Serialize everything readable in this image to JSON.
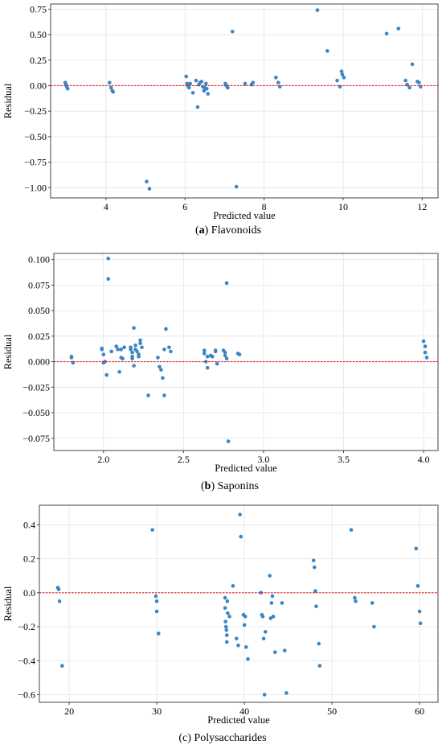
{
  "colors": {
    "point": "#3a86c4",
    "zero_line": "#e8212a",
    "grid": "#e4e4e4",
    "frame": "#444444"
  },
  "chart_data": [
    {
      "type": "scatter",
      "caption": {
        "letter": "a",
        "text": "Flavonoids",
        "open": "(",
        "close": ")"
      },
      "xlabel": "Predicted value",
      "ylabel": "Residual",
      "xlim": [
        2.6,
        12.4
      ],
      "ylim": [
        -1.1,
        0.8
      ],
      "xticks": [
        4,
        6,
        8,
        10,
        12
      ],
      "xtick_labels": [
        "4",
        "6",
        "8",
        "10",
        "12"
      ],
      "yticks": [
        -1.0,
        -0.75,
        -0.5,
        -0.25,
        0.0,
        0.25,
        0.5,
        0.75
      ],
      "ytick_labels": [
        "−1.00",
        "−0.75",
        "−0.50",
        "−0.25",
        "0.00",
        "0.25",
        "0.50",
        "0.75"
      ],
      "grid": true,
      "reference_line_y": 0,
      "x": [
        2.97,
        2.99,
        3.01,
        3.03,
        4.09,
        4.13,
        4.16,
        4.18,
        5.03,
        5.1,
        6.03,
        6.05,
        6.07,
        6.1,
        6.13,
        6.2,
        6.28,
        6.32,
        6.35,
        6.38,
        6.42,
        6.45,
        6.48,
        6.5,
        6.53,
        6.55,
        6.58,
        7.02,
        7.05,
        7.08,
        7.2,
        7.3,
        7.52,
        7.68,
        7.72,
        8.3,
        8.36,
        8.4,
        9.35,
        9.6,
        9.85,
        9.92,
        9.96,
        9.98,
        10.02,
        11.1,
        11.4,
        11.58,
        11.62,
        11.68,
        11.75,
        11.88,
        11.92,
        11.96
      ],
      "y": [
        0.03,
        0.01,
        -0.01,
        -0.03,
        0.03,
        -0.02,
        -0.05,
        -0.06,
        -0.94,
        -1.01,
        0.09,
        0.02,
        0.0,
        -0.02,
        0.02,
        -0.07,
        0.05,
        -0.21,
        0.01,
        0.03,
        0.04,
        -0.01,
        -0.05,
        -0.02,
        0.02,
        -0.03,
        -0.08,
        0.02,
        0.0,
        -0.02,
        0.53,
        -0.99,
        0.02,
        0.01,
        0.03,
        0.08,
        0.03,
        -0.01,
        0.74,
        0.34,
        0.05,
        -0.01,
        0.14,
        0.11,
        0.08,
        0.51,
        0.56,
        0.05,
        0.01,
        -0.02,
        0.21,
        0.04,
        0.03,
        -0.01
      ]
    },
    {
      "type": "scatter",
      "caption": {
        "letter": "b",
        "text": "Saponins",
        "open": "(",
        "close": ")"
      },
      "xlabel": "Predicted value",
      "ylabel": "Residual",
      "xlim": [
        1.69,
        4.09
      ],
      "ylim": [
        -0.087,
        0.106
      ],
      "xticks": [
        2.0,
        2.5,
        3.0,
        3.5,
        4.0
      ],
      "xtick_labels": [
        "2.0",
        "2.5",
        "3.0",
        "3.5",
        "4.0"
      ],
      "yticks": [
        -0.075,
        -0.05,
        -0.025,
        0.0,
        0.025,
        0.05,
        0.075,
        0.1
      ],
      "ytick_labels": [
        "−0.075",
        "−0.050",
        "−0.025",
        "0.000",
        "0.025",
        "0.050",
        "0.075",
        "0.100"
      ],
      "grid": true,
      "reference_line_y": 0,
      "x": [
        1.8,
        1.8,
        1.81,
        1.99,
        1.99,
        2.0,
        2.0,
        2.01,
        2.02,
        2.03,
        2.03,
        2.05,
        2.08,
        2.09,
        2.1,
        2.11,
        2.11,
        2.12,
        2.13,
        2.17,
        2.17,
        2.18,
        2.18,
        2.18,
        2.19,
        2.19,
        2.2,
        2.2,
        2.21,
        2.22,
        2.22,
        2.23,
        2.23,
        2.24,
        2.28,
        2.34,
        2.35,
        2.36,
        2.37,
        2.38,
        2.38,
        2.39,
        2.41,
        2.42,
        2.63,
        2.63,
        2.64,
        2.65,
        2.65,
        2.67,
        2.68,
        2.7,
        2.7,
        2.71,
        2.75,
        2.76,
        2.76,
        2.77,
        2.77,
        2.78,
        2.84,
        2.85,
        4.0,
        4.01,
        4.01,
        4.02
      ],
      "y": [
        0.004,
        0.005,
        -0.001,
        0.013,
        0.012,
        0.007,
        -0.001,
        0.0,
        -0.013,
        0.101,
        0.081,
        0.01,
        0.015,
        0.012,
        -0.01,
        0.012,
        0.004,
        0.003,
        0.014,
        0.014,
        0.012,
        0.009,
        0.005,
        0.003,
        0.033,
        -0.004,
        0.016,
        0.012,
        0.01,
        0.007,
        0.005,
        0.021,
        0.018,
        0.014,
        -0.033,
        0.004,
        -0.005,
        -0.008,
        -0.016,
        -0.033,
        0.012,
        0.032,
        0.014,
        0.01,
        0.011,
        0.008,
        0.0,
        -0.006,
        0.005,
        0.006,
        0.005,
        0.011,
        0.01,
        -0.002,
        0.011,
        0.009,
        0.006,
        0.003,
        0.077,
        -0.078,
        0.008,
        0.007,
        0.02,
        0.015,
        0.009,
        0.004
      ]
    },
    {
      "type": "scatter",
      "caption": {
        "letter": "",
        "text": "(c) Polysaccharides",
        "open": "",
        "close": ""
      },
      "xlabel": "Predicted value",
      "ylabel": "Residual",
      "xlim": [
        16.6,
        62.1
      ],
      "ylim": [
        -0.645,
        0.515
      ],
      "xticks": [
        20,
        30,
        40,
        50,
        60
      ],
      "xtick_labels": [
        "20",
        "30",
        "40",
        "50",
        "60"
      ],
      "yticks": [
        -0.6,
        -0.4,
        -0.2,
        0.0,
        0.2,
        0.4
      ],
      "ytick_labels": [
        "−0.6",
        "−0.4",
        "−0.2",
        "0.0",
        "0.2",
        "0.4"
      ],
      "grid": true,
      "reference_line_y": 0,
      "x": [
        18.7,
        18.8,
        18.9,
        19.2,
        29.5,
        29.9,
        30.0,
        30.0,
        30.2,
        37.8,
        37.8,
        37.85,
        37.9,
        37.95,
        38.0,
        38.0,
        38.05,
        38.1,
        38.3,
        38.7,
        39.1,
        39.3,
        39.5,
        39.6,
        39.9,
        40.0,
        40.1,
        40.2,
        40.4,
        41.9,
        42.0,
        42.1,
        42.2,
        42.3,
        42.4,
        42.9,
        43.0,
        43.1,
        43.2,
        43.3,
        43.5,
        44.3,
        44.6,
        44.8,
        47.9,
        48.0,
        48.1,
        48.2,
        48.5,
        48.6,
        52.2,
        52.6,
        52.7,
        54.6,
        54.8,
        59.6,
        59.8,
        60.0,
        60.1
      ],
      "y": [
        0.03,
        0.02,
        -0.05,
        -0.43,
        0.37,
        -0.02,
        -0.05,
        -0.11,
        -0.24,
        -0.03,
        -0.09,
        -0.17,
        -0.2,
        -0.22,
        -0.25,
        -0.29,
        -0.05,
        -0.12,
        -0.14,
        0.04,
        -0.27,
        -0.31,
        0.46,
        0.33,
        -0.13,
        -0.19,
        -0.14,
        -0.32,
        -0.39,
        0.0,
        -0.13,
        -0.14,
        -0.27,
        -0.6,
        -0.23,
        0.1,
        -0.15,
        -0.06,
        -0.02,
        -0.14,
        -0.35,
        -0.06,
        -0.34,
        -0.59,
        0.19,
        0.15,
        0.01,
        -0.08,
        -0.3,
        -0.43,
        0.37,
        -0.03,
        -0.05,
        -0.06,
        -0.2,
        0.26,
        0.04,
        -0.11,
        -0.18
      ]
    }
  ]
}
